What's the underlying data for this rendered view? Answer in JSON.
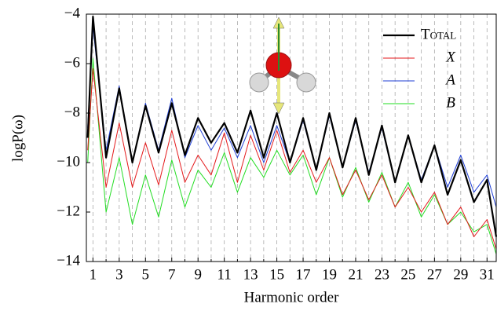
{
  "chart_data": {
    "type": "line",
    "x_label": "Harmonic order",
    "y_label": "logP(ω)",
    "x": [
      0.6,
      1,
      2,
      3,
      4,
      5,
      6,
      7,
      8,
      9,
      10,
      11,
      12,
      13,
      14,
      15,
      16,
      17,
      18,
      19,
      20,
      21,
      22,
      23,
      24,
      25,
      26,
      27,
      28,
      29,
      30,
      31,
      31.7
    ],
    "series": [
      {
        "name": "Total",
        "color": "#000000",
        "width": 2.2,
        "values": [
          -9,
          -4.1,
          -9.8,
          -7,
          -10,
          -7.7,
          -9.6,
          -7.6,
          -9.7,
          -8.2,
          -9.2,
          -8.4,
          -9.6,
          -7.9,
          -9.8,
          -8,
          -10,
          -8.2,
          -10.3,
          -8,
          -10.2,
          -8.2,
          -10.5,
          -8.5,
          -10.8,
          -8.9,
          -10.8,
          -9.3,
          -11.3,
          -9.9,
          -11.6,
          -10.7,
          -13
        ]
      },
      {
        "name": "X",
        "color": "#e41a1c",
        "width": 1,
        "values": [
          -9.5,
          -6.2,
          -11,
          -8.4,
          -11,
          -9.2,
          -10.9,
          -8.7,
          -10.8,
          -9.7,
          -10.5,
          -8.8,
          -10.8,
          -8.9,
          -10.3,
          -8.7,
          -10.4,
          -9.5,
          -10.8,
          -9.8,
          -11.3,
          -10.3,
          -11.5,
          -10.5,
          -11.8,
          -11,
          -12,
          -11.2,
          -12.5,
          -11.8,
          -13,
          -12.3,
          -13.5
        ]
      },
      {
        "name": "A",
        "color": "#1f3fd6",
        "width": 1,
        "values": [
          -8.6,
          -4.5,
          -9.5,
          -6.9,
          -10,
          -7.6,
          -9.5,
          -7.4,
          -9.8,
          -8.5,
          -9.5,
          -8.6,
          -9.8,
          -8.5,
          -10,
          -8.5,
          -10,
          -8.3,
          -10.3,
          -8.1,
          -10.2,
          -8.3,
          -10.4,
          -8.6,
          -10.8,
          -8.9,
          -10.7,
          -9.3,
          -11,
          -9.7,
          -11.2,
          -10.5,
          -11.8
        ]
      },
      {
        "name": "B",
        "color": "#22dd22",
        "width": 1,
        "values": [
          -10,
          -5.8,
          -12,
          -9.8,
          -12.5,
          -10.5,
          -12.2,
          -9.9,
          -11.8,
          -10.3,
          -11,
          -9.6,
          -11.2,
          -9.8,
          -10.6,
          -9.5,
          -10.5,
          -9.7,
          -11.3,
          -9.8,
          -11.4,
          -10.2,
          -11.6,
          -10.4,
          -11.8,
          -10.8,
          -12.2,
          -11.3,
          -12.5,
          -12,
          -12.8,
          -12.5,
          -13.7
        ]
      }
    ],
    "xlim": [
      0.5,
      31.7
    ],
    "ylim": [
      -14,
      -4
    ],
    "xticks": [
      1,
      3,
      5,
      7,
      9,
      11,
      13,
      15,
      17,
      19,
      21,
      23,
      25,
      27,
      29,
      31
    ],
    "yticks": [
      {
        "value": -14,
        "label": "−14"
      },
      {
        "value": -12,
        "label": "−12"
      },
      {
        "value": -10,
        "label": "−10"
      },
      {
        "value": -8,
        "label": "−8"
      },
      {
        "value": -6,
        "label": "−6"
      },
      {
        "value": -4,
        "label": "−4"
      }
    ],
    "xgrid": true,
    "xgrid_minor": true,
    "legend": "top-right"
  }
}
